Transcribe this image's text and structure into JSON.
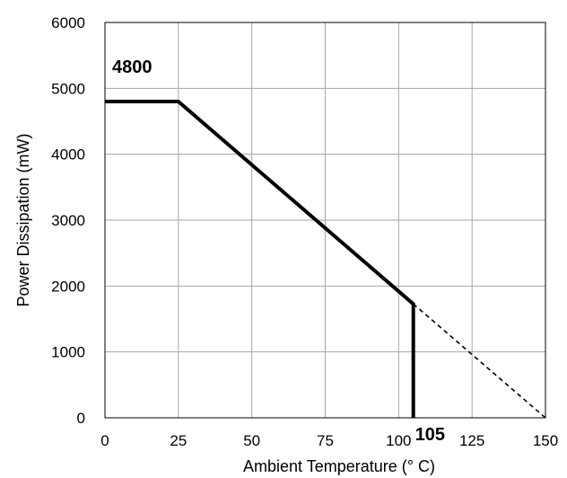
{
  "chart_data": {
    "type": "line",
    "title": "",
    "xlabel": "Ambient Temperature (° C)",
    "ylabel": "Power Dissipation (mW)",
    "xlim": [
      0,
      150
    ],
    "ylim": [
      0,
      6000
    ],
    "xticks": [
      0,
      25,
      50,
      75,
      100,
      125,
      150
    ],
    "yticks": [
      0,
      1000,
      2000,
      3000,
      4000,
      5000,
      6000
    ],
    "grid": true,
    "legend": "none",
    "series": [
      {
        "style": "solid-thick",
        "color": "#000000",
        "points": [
          [
            0,
            4800
          ],
          [
            25,
            4800
          ],
          [
            105,
            1728
          ],
          [
            105,
            0
          ]
        ]
      },
      {
        "style": "dashed",
        "color": "#000000",
        "points": [
          [
            105,
            1728
          ],
          [
            150,
            0
          ]
        ]
      }
    ],
    "annotations": [
      {
        "text": "4800",
        "x": 0,
        "y": 4800
      },
      {
        "text": "105",
        "x": 105,
        "y": 0
      }
    ]
  }
}
